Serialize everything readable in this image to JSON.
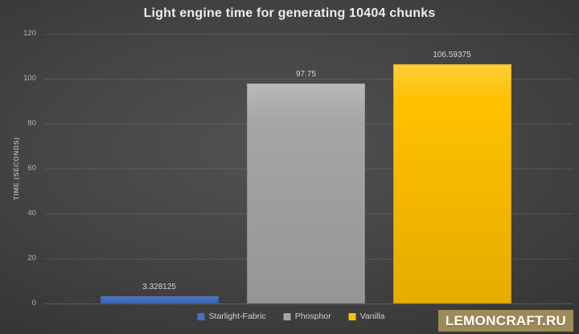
{
  "chart_data": {
    "type": "bar",
    "title": "Light engine time for generating 10404 chunks",
    "ylabel": "TIME (SECONDS)",
    "xlabel": "",
    "ylim": [
      0,
      120
    ],
    "yticks": [
      0,
      20,
      40,
      60,
      80,
      100,
      120
    ],
    "grid": true,
    "legend_position": "bottom",
    "categories": [
      "Starlight-Fabric",
      "Phosphor",
      "Vanilla"
    ],
    "values": [
      3.328125,
      97.75,
      106.59375
    ],
    "value_labels": [
      "3.328125",
      "97.75",
      "106.59375"
    ],
    "bar_colors": [
      "#4472c4",
      "#a6a6a6",
      "#ffc000"
    ]
  },
  "legend": {
    "items": [
      {
        "label": "Starlight-Fabric",
        "color": "#4472c4"
      },
      {
        "label": "Phosphor",
        "color": "#a6a6a6"
      },
      {
        "label": "Vanilla",
        "color": "#ffc000"
      }
    ]
  },
  "watermark": {
    "text": "LEMONCRAFT.RU",
    "bg": "#9d8a58"
  }
}
